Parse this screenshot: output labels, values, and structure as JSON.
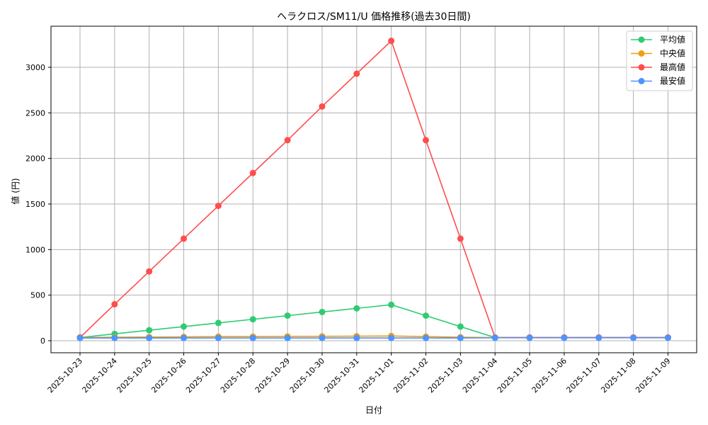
{
  "chart_data": {
    "type": "line",
    "title": "ヘラクロス/SM11/U 価格推移(過去30日間)",
    "xlabel": "日付",
    "ylabel": "値 (円)",
    "ylim": [
      -130,
      3420
    ],
    "yticks": [
      0,
      500,
      1000,
      1500,
      2000,
      2500,
      3000
    ],
    "grid": true,
    "legend_position": "upper right",
    "categories": [
      "2025-10-23",
      "2025-10-24",
      "2025-10-25",
      "2025-10-26",
      "2025-10-27",
      "2025-10-28",
      "2025-10-29",
      "2025-10-30",
      "2025-10-31",
      "2025-11-01",
      "2025-11-02",
      "2025-11-03",
      "2025-11-04",
      "2025-11-05",
      "2025-11-06",
      "2025-11-07",
      "2025-11-08",
      "2025-11-09"
    ],
    "series": [
      {
        "name": "平均値",
        "color": "#2ecc71",
        "values": [
          35,
          75,
          115,
          155,
          195,
          235,
          275,
          315,
          355,
          395,
          275,
          155,
          35,
          35,
          35,
          35,
          35,
          35
        ]
      },
      {
        "name": "中央値",
        "color": "#f39c12",
        "values": [
          35,
          38,
          40,
          42,
          45,
          45,
          47,
          48,
          50,
          52,
          45,
          38,
          35,
          35,
          35,
          35,
          35,
          35
        ]
      },
      {
        "name": "最高値",
        "color": "#ff4d4d",
        "values": [
          35,
          400,
          760,
          1120,
          1480,
          1840,
          2200,
          2570,
          2930,
          3290,
          2200,
          1120,
          35,
          35,
          35,
          35,
          35,
          35
        ]
      },
      {
        "name": "最安値",
        "color": "#4d94ff",
        "values": [
          30,
          30,
          30,
          30,
          30,
          30,
          30,
          30,
          30,
          30,
          30,
          30,
          32,
          32,
          32,
          32,
          32,
          32
        ]
      }
    ]
  }
}
